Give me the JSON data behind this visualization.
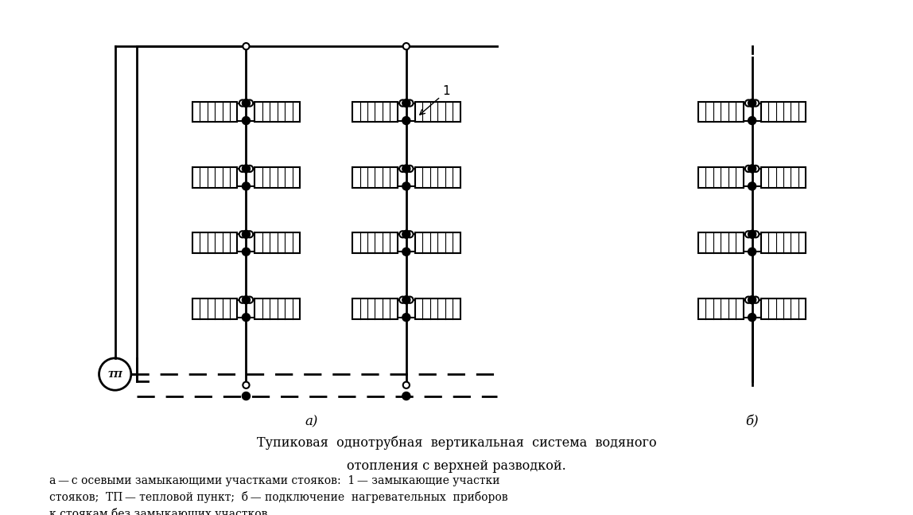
{
  "bg_color": "#ffffff",
  "line_color": "#000000",
  "title_line1": "Тупиковая  однотрубная  вертикальная  система  водяного",
  "title_line2": "отопления с верхней разводкой.",
  "caption": "а — с осевыми замыкающими участками стояков:  1 — замыкающие участки\nстояков;  ТП — тепловой пункт;  б — подключение  нагревательных  приборов\nк стоякам без замыкающих участков.",
  "label_a": "а)",
  "label_b": "б)",
  "label_1": "1",
  "label_tp": "ТП"
}
